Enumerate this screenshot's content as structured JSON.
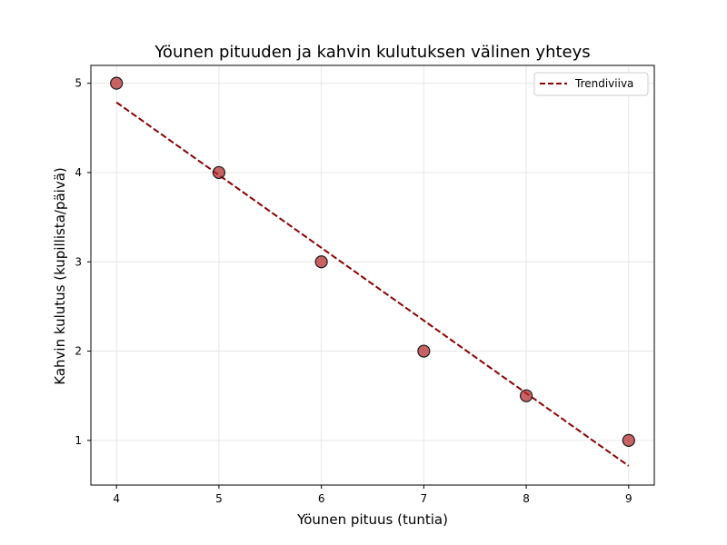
{
  "chart_data": {
    "type": "scatter",
    "title": "Yöunen pituuden ja kahvin kulutuksen välinen yhteys",
    "xlabel": "Yöunen pituus (tuntia)",
    "ylabel": "Kahvin kulutus (kupillista/päivä)",
    "xlim": [
      3.75,
      9.25
    ],
    "ylim": [
      0.5,
      5.2
    ],
    "xticks": [
      4,
      5,
      6,
      7,
      8,
      9
    ],
    "yticks": [
      1,
      2,
      3,
      4,
      5
    ],
    "grid": true,
    "legend_position": "top-right",
    "series": [
      {
        "kind": "scatter",
        "x": [
          4,
          5,
          6,
          7,
          8,
          9
        ],
        "y": [
          5,
          4,
          3,
          2,
          1.5,
          1
        ],
        "color": "#b22222",
        "edge_color": "#1a1a1a"
      },
      {
        "kind": "line",
        "name": "Trendiviiva",
        "style": "dashed",
        "x": [
          4,
          9
        ],
        "y": [
          4.786,
          0.714
        ],
        "color": "#8b0000"
      }
    ]
  }
}
